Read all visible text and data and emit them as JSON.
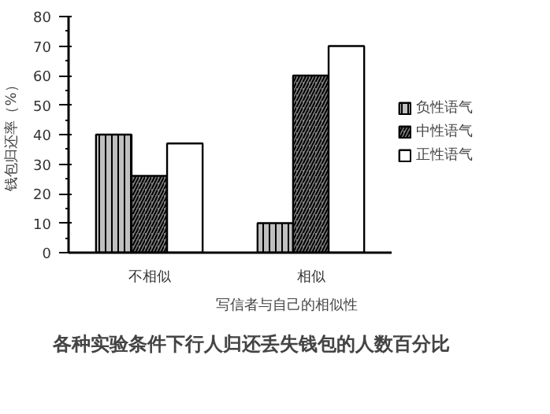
{
  "chart_data": {
    "type": "bar",
    "title": "各种实验条件下行人归还丢失钱包的人数百分比",
    "xlabel": "写信者与自己的相似性",
    "ylabel": "钱包归还率（%）",
    "categories": [
      "不相似",
      "相似"
    ],
    "series": [
      {
        "name": "负性语气",
        "color": "#c0c0c0",
        "values": [
          40,
          10
        ]
      },
      {
        "name": "中性语气",
        "color": "#808080",
        "values": [
          26,
          60
        ]
      },
      {
        "name": "正性语气",
        "color": "#ffffff",
        "values": [
          37,
          70
        ]
      }
    ],
    "ylim": [
      0,
      80
    ],
    "yticks": [
      0,
      10,
      20,
      30,
      40,
      50,
      60,
      70,
      80
    ],
    "grid": false,
    "legend": "right"
  }
}
